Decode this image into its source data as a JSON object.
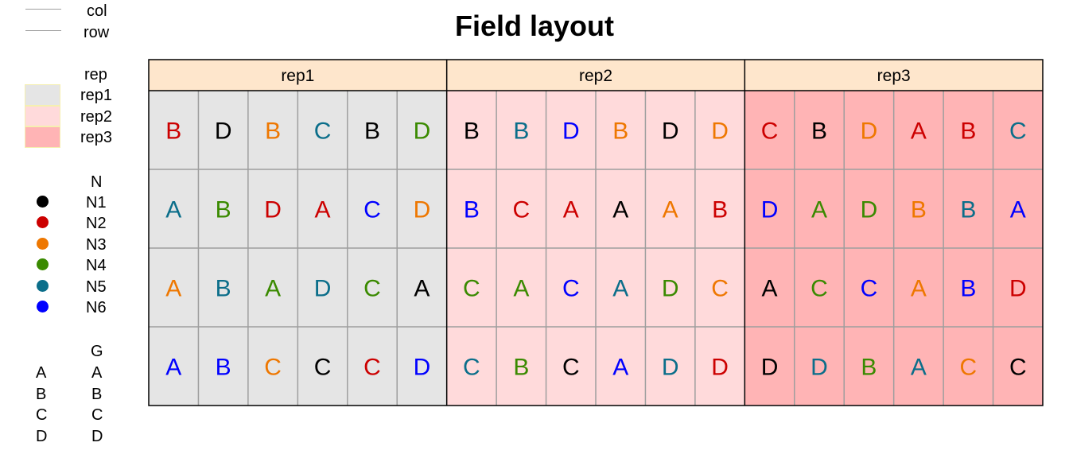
{
  "chart_data": {
    "type": "table",
    "title": "Field layout",
    "facets": [
      "rep1",
      "rep2",
      "rep3"
    ],
    "n_rows": 4,
    "n_cols_per_facet": 6,
    "rep_colors": {
      "rep1": "#e5e5e5",
      "rep2": "#ffdadb",
      "rep3": "#ffb4b5"
    },
    "nitrogen_colors": {
      "N1": "#000000",
      "N2": "#cc0000",
      "N3": "#ee7700",
      "N4": "#3a8a00",
      "N5": "#0b6e8a",
      "N6": "#0000ff"
    },
    "grid": {
      "rep1": [
        [
          {
            "g": "B",
            "n": "N2"
          },
          {
            "g": "D",
            "n": "N1"
          },
          {
            "g": "B",
            "n": "N3"
          },
          {
            "g": "C",
            "n": "N5"
          },
          {
            "g": "B",
            "n": "N1"
          },
          {
            "g": "D",
            "n": "N4"
          }
        ],
        [
          {
            "g": "A",
            "n": "N5"
          },
          {
            "g": "B",
            "n": "N4"
          },
          {
            "g": "D",
            "n": "N2"
          },
          {
            "g": "A",
            "n": "N2"
          },
          {
            "g": "C",
            "n": "N6"
          },
          {
            "g": "D",
            "n": "N3"
          }
        ],
        [
          {
            "g": "A",
            "n": "N3"
          },
          {
            "g": "B",
            "n": "N5"
          },
          {
            "g": "A",
            "n": "N4"
          },
          {
            "g": "D",
            "n": "N5"
          },
          {
            "g": "C",
            "n": "N4"
          },
          {
            "g": "A",
            "n": "N1"
          }
        ],
        [
          {
            "g": "A",
            "n": "N6"
          },
          {
            "g": "B",
            "n": "N6"
          },
          {
            "g": "C",
            "n": "N3"
          },
          {
            "g": "C",
            "n": "N1"
          },
          {
            "g": "C",
            "n": "N2"
          },
          {
            "g": "D",
            "n": "N6"
          }
        ]
      ],
      "rep2": [
        [
          {
            "g": "B",
            "n": "N1"
          },
          {
            "g": "B",
            "n": "N5"
          },
          {
            "g": "D",
            "n": "N6"
          },
          {
            "g": "B",
            "n": "N3"
          },
          {
            "g": "D",
            "n": "N1"
          },
          {
            "g": "D",
            "n": "N3"
          }
        ],
        [
          {
            "g": "B",
            "n": "N6"
          },
          {
            "g": "C",
            "n": "N2"
          },
          {
            "g": "A",
            "n": "N2"
          },
          {
            "g": "A",
            "n": "N1"
          },
          {
            "g": "A",
            "n": "N3"
          },
          {
            "g": "B",
            "n": "N2"
          }
        ],
        [
          {
            "g": "C",
            "n": "N4"
          },
          {
            "g": "A",
            "n": "N4"
          },
          {
            "g": "C",
            "n": "N6"
          },
          {
            "g": "A",
            "n": "N5"
          },
          {
            "g": "D",
            "n": "N4"
          },
          {
            "g": "C",
            "n": "N3"
          }
        ],
        [
          {
            "g": "C",
            "n": "N5"
          },
          {
            "g": "B",
            "n": "N4"
          },
          {
            "g": "C",
            "n": "N1"
          },
          {
            "g": "A",
            "n": "N6"
          },
          {
            "g": "D",
            "n": "N5"
          },
          {
            "g": "D",
            "n": "N2"
          }
        ]
      ],
      "rep3": [
        [
          {
            "g": "C",
            "n": "N2"
          },
          {
            "g": "B",
            "n": "N1"
          },
          {
            "g": "D",
            "n": "N3"
          },
          {
            "g": "A",
            "n": "N2"
          },
          {
            "g": "B",
            "n": "N2"
          },
          {
            "g": "C",
            "n": "N5"
          }
        ],
        [
          {
            "g": "D",
            "n": "N6"
          },
          {
            "g": "A",
            "n": "N4"
          },
          {
            "g": "D",
            "n": "N4"
          },
          {
            "g": "B",
            "n": "N3"
          },
          {
            "g": "B",
            "n": "N5"
          },
          {
            "g": "A",
            "n": "N6"
          }
        ],
        [
          {
            "g": "A",
            "n": "N1"
          },
          {
            "g": "C",
            "n": "N4"
          },
          {
            "g": "C",
            "n": "N6"
          },
          {
            "g": "A",
            "n": "N3"
          },
          {
            "g": "B",
            "n": "N6"
          },
          {
            "g": "D",
            "n": "N2"
          }
        ],
        [
          {
            "g": "D",
            "n": "N1"
          },
          {
            "g": "D",
            "n": "N5"
          },
          {
            "g": "B",
            "n": "N4"
          },
          {
            "g": "A",
            "n": "N5"
          },
          {
            "g": "C",
            "n": "N3"
          },
          {
            "g": "C",
            "n": "N1"
          }
        ]
      ]
    },
    "legend": {
      "lines": {
        "items": [
          "col",
          "row"
        ],
        "color": "#9e9e9e"
      },
      "rep": {
        "title": "rep",
        "items": [
          "rep1",
          "rep2",
          "rep3"
        ]
      },
      "nitrogen": {
        "title": "N",
        "items": [
          "N1",
          "N2",
          "N3",
          "N4",
          "N5",
          "N6"
        ]
      },
      "genotype": {
        "title": "G",
        "keys": [
          "A",
          "B",
          "C",
          "D"
        ],
        "items": [
          "A",
          "B",
          "C",
          "D"
        ]
      }
    }
  }
}
